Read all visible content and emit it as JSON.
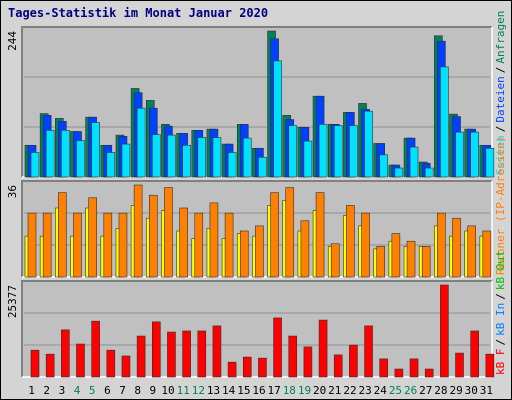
{
  "chart_data": {
    "type": "bar",
    "title": "Tages-Statistik im Monat Januar 2020",
    "legend_separator": "/",
    "categories": [
      "1",
      "2",
      "3",
      "4",
      "5",
      "6",
      "7",
      "8",
      "9",
      "10",
      "11",
      "12",
      "13",
      "14",
      "15",
      "16",
      "17",
      "18",
      "19",
      "20",
      "21",
      "22",
      "23",
      "24",
      "25",
      "26",
      "27",
      "28",
      "29",
      "30",
      "31"
    ],
    "category_colors": [
      "#000000",
      "#000000",
      "#000000",
      "#00805c",
      "#00805c",
      "#000000",
      "#000000",
      "#000000",
      "#000000",
      "#000000",
      "#00805c",
      "#00805c",
      "#000000",
      "#000000",
      "#000000",
      "#000000",
      "#000000",
      "#00805c",
      "#00805c",
      "#000000",
      "#000000",
      "#000000",
      "#000000",
      "#000000",
      "#00805c",
      "#00805c",
      "#000000",
      "#000000",
      "#000000",
      "#000000",
      "#000000"
    ],
    "panels": [
      {
        "ylim": [
          0,
          244
        ],
        "yticks": [
          244
        ],
        "series": [
          {
            "name": "Seiten",
            "color": "#00e0ff",
            "values": [
              41,
              78,
              78,
              61,
              91,
              41,
              55,
              115,
              71,
              70,
              53,
              66,
              66,
              41,
              65,
              33,
              194,
              86,
              60,
              88,
              86,
              86,
              110,
              37,
              15,
              50,
              15,
              184,
              75,
              75,
              48
            ]
          },
          {
            "name": "Dateien",
            "color": "#0040ff",
            "values": [
              53,
              103,
              93,
              76,
              100,
              53,
              68,
              141,
              115,
              85,
              73,
              78,
              80,
              55,
              88,
              48,
              231,
              96,
              83,
              135,
              88,
              108,
              113,
              56,
              20,
              65,
              23,
              227,
              101,
              80,
              53
            ]
          },
          {
            "name": "Anfragen",
            "color": "#00805c",
            "values": [
              53,
              106,
              98,
              76,
              100,
              53,
              70,
              148,
              128,
              88,
              73,
              78,
              80,
              55,
              88,
              48,
              244,
              103,
              83,
              135,
              88,
              108,
              123,
              56,
              20,
              65,
              25,
              236,
              105,
              80,
              53
            ]
          }
        ]
      },
      {
        "ylim": [
          0,
          36
        ],
        "yticks": [
          36
        ],
        "series": [
          {
            "name": "Rechner (IP-Adressen)",
            "color": "#ff8000",
            "values": [
              25,
              25,
              33,
              25,
              31,
              25,
              25,
              36,
              32,
              35,
              27,
              25,
              29,
              25,
              18,
              20,
              33,
              35,
              22,
              33,
              13,
              28,
              25,
              12,
              17,
              14,
              12,
              25,
              23,
              20,
              18
            ]
          },
          {
            "color": "#ffff00",
            "values": [
              16,
              16,
              27,
              16,
              27,
              16,
              19,
              28,
              23,
              26,
              18,
              15,
              19,
              15,
              17,
              16,
              28,
              30,
              18,
              26,
              12,
              24,
              20,
              11,
              14,
              12,
              12,
              20,
              16,
              18,
              16
            ]
          }
        ]
      },
      {
        "ylim": [
          0,
          25377
        ],
        "yticks": [
          25377
        ],
        "series": [
          {
            "name": "kB F",
            "color": "#ff0000",
            "values": [
              7400,
              6300,
              13000,
              9100,
              15400,
              7400,
              5800,
              11300,
              15200,
              12400,
              12700,
              12700,
              14100,
              4100,
              5500,
              5200,
              16300,
              11300,
              8300,
              15700,
              6100,
              8800,
              14100,
              5000,
              2200,
              5000,
              2200,
              25377,
              6600,
              12700,
              6300
            ]
          },
          {
            "name": "kB In",
            "color": "#0080ff"
          },
          {
            "name": "kB Out",
            "color": "#00c000"
          }
        ]
      }
    ]
  }
}
